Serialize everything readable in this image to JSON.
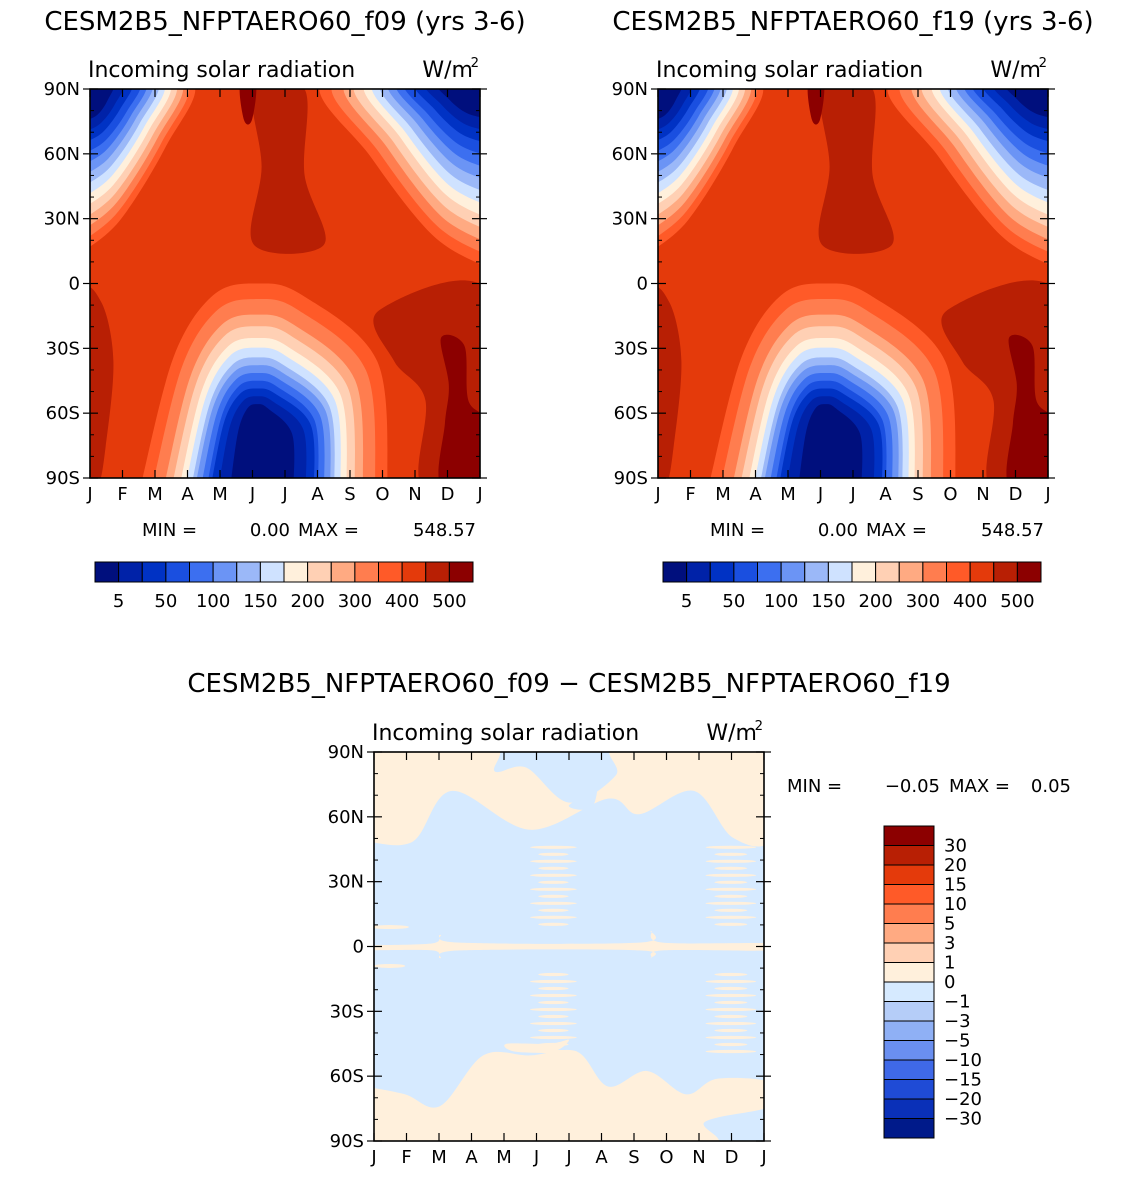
{
  "chart_data": [
    {
      "type": "heatmap",
      "title": "CESM2B5_NFPTAERO60_f09 (yrs 3-6)",
      "subtitle_left": "Incoming solar radiation",
      "units": "W/m",
      "units_sup": "2",
      "x_ticks": [
        "J",
        "F",
        "M",
        "A",
        "M",
        "J",
        "J",
        "A",
        "S",
        "O",
        "N",
        "D",
        "J"
      ],
      "y_ticks": [
        "90N",
        "60N",
        "30N",
        "0",
        "30S",
        "60S",
        "90S"
      ],
      "ylim": [
        -90,
        90
      ],
      "stats": {
        "min_label": "MIN =",
        "min_value": "0.00",
        "max_label": "MAX =",
        "max_value": "548.57"
      },
      "colorbar": {
        "orientation": "horizontal",
        "colors": [
          "#000f7d",
          "#0022a8",
          "#0032c4",
          "#1a4fe0",
          "#3c6ff0",
          "#6b94f5",
          "#9bb8f8",
          "#cfe2ff",
          "#fff0dc",
          "#ffd0b4",
          "#ffaa82",
          "#ff7d4f",
          "#ff5a28",
          "#e43a0b",
          "#b81f04",
          "#8c0000"
        ],
        "labels": [
          "5",
          "50",
          "100",
          "150",
          "200",
          "300",
          "400",
          "500"
        ]
      }
    },
    {
      "type": "heatmap",
      "title": "CESM2B5_NFPTAERO60_f19 (yrs 3-6)",
      "subtitle_left": "Incoming solar radiation",
      "units": "W/m",
      "units_sup": "2",
      "x_ticks": [
        "J",
        "F",
        "M",
        "A",
        "M",
        "J",
        "J",
        "A",
        "S",
        "O",
        "N",
        "D",
        "J"
      ],
      "y_ticks": [
        "90N",
        "60N",
        "30N",
        "0",
        "30S",
        "60S",
        "90S"
      ],
      "ylim": [
        -90,
        90
      ],
      "stats": {
        "min_label": "MIN =",
        "min_value": "0.00",
        "max_label": "MAX =",
        "max_value": "548.57"
      },
      "colorbar": {
        "orientation": "horizontal",
        "colors": [
          "#000f7d",
          "#0022a8",
          "#0032c4",
          "#1a4fe0",
          "#3c6ff0",
          "#6b94f5",
          "#9bb8f8",
          "#cfe2ff",
          "#fff0dc",
          "#ffd0b4",
          "#ffaa82",
          "#ff7d4f",
          "#ff5a28",
          "#e43a0b",
          "#b81f04",
          "#8c0000"
        ],
        "labels": [
          "5",
          "50",
          "100",
          "150",
          "200",
          "300",
          "400",
          "500"
        ]
      }
    },
    {
      "type": "heatmap",
      "title": "CESM2B5_NFPTAERO60_f09 − CESM2B5_NFPTAERO60_f19",
      "subtitle_left": "Incoming solar radiation",
      "units": "W/m",
      "units_sup": "2",
      "x_ticks": [
        "J",
        "F",
        "M",
        "A",
        "M",
        "J",
        "J",
        "A",
        "S",
        "O",
        "N",
        "D",
        "J"
      ],
      "y_ticks": [
        "90N",
        "60N",
        "30N",
        "0",
        "30S",
        "60S",
        "90S"
      ],
      "ylim": [
        -90,
        90
      ],
      "stats": {
        "min_label": "MIN =",
        "min_value": "−0.05",
        "max_label": "MAX =",
        "max_value": "0.05"
      },
      "colorbar": {
        "orientation": "vertical",
        "colors": [
          "#8c0000",
          "#b81f04",
          "#e43a0b",
          "#ff5a28",
          "#ff7d4f",
          "#ffaa82",
          "#ffd0b4",
          "#fff0dc",
          "#d6eaff",
          "#b5cdf8",
          "#8fb0f5",
          "#6a8ff0",
          "#3f69e8",
          "#1f4bd6",
          "#0a30b8",
          "#001a8a"
        ],
        "labels": [
          "30",
          "20",
          "15",
          "10",
          "5",
          "3",
          "1",
          "0",
          "−1",
          "−3",
          "−5",
          "−10",
          "−15",
          "−20",
          "−30"
        ]
      }
    }
  ]
}
